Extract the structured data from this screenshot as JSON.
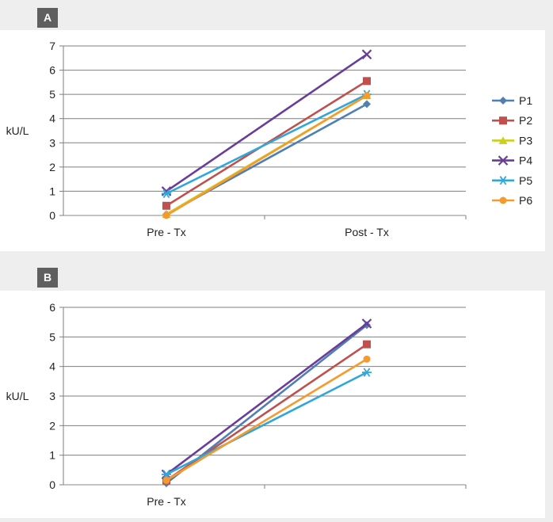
{
  "panels": [
    {
      "label": "A"
    },
    {
      "label": "B"
    }
  ],
  "chart_data": [
    {
      "type": "line",
      "panel": "A",
      "title": "",
      "xlabel": "",
      "ylabel": "kU/L",
      "categories": [
        "Pre - Tx",
        "Post - Tx"
      ],
      "ylim": [
        0,
        7
      ],
      "yticks": [
        0,
        1,
        2,
        3,
        4,
        5,
        6,
        7
      ],
      "grid": true,
      "legend_position": "right",
      "series": [
        {
          "name": "P1",
          "color": "#4f7fb3",
          "marker": "diamond",
          "values": [
            0.05,
            4.6
          ]
        },
        {
          "name": "P2",
          "color": "#c0504d",
          "marker": "square",
          "values": [
            0.4,
            5.55
          ]
        },
        {
          "name": "P3",
          "color": "#c9d11a",
          "marker": "triangle",
          "values": [
            0.05,
            4.95
          ]
        },
        {
          "name": "P4",
          "color": "#6a3d9a",
          "marker": "x",
          "values": [
            1.0,
            6.65
          ]
        },
        {
          "name": "P5",
          "color": "#31a7d9",
          "marker": "star",
          "values": [
            0.9,
            5.0
          ]
        },
        {
          "name": "P6",
          "color": "#f79a2e",
          "marker": "circle",
          "values": [
            0.0,
            4.95
          ]
        }
      ]
    },
    {
      "type": "line",
      "panel": "B",
      "title": "",
      "xlabel": "",
      "ylabel": "kU/L",
      "categories": [
        "Pre - Tx",
        ""
      ],
      "ylim": [
        0,
        6
      ],
      "yticks": [
        0,
        1,
        2,
        3,
        4,
        5,
        6
      ],
      "grid": true,
      "series": [
        {
          "name": "P1",
          "color": "#4f7fb3",
          "marker": "diamond",
          "values": [
            0.05,
            5.4
          ]
        },
        {
          "name": "P2",
          "color": "#c0504d",
          "marker": "square",
          "values": [
            0.15,
            4.75
          ]
        },
        {
          "name": "P4",
          "color": "#6a3d9a",
          "marker": "x",
          "values": [
            0.35,
            5.45
          ]
        },
        {
          "name": "P5",
          "color": "#31a7d9",
          "marker": "star",
          "values": [
            0.35,
            3.8
          ]
        },
        {
          "name": "P6",
          "color": "#f79a2e",
          "marker": "circle",
          "values": [
            0.15,
            4.25
          ]
        }
      ]
    }
  ]
}
